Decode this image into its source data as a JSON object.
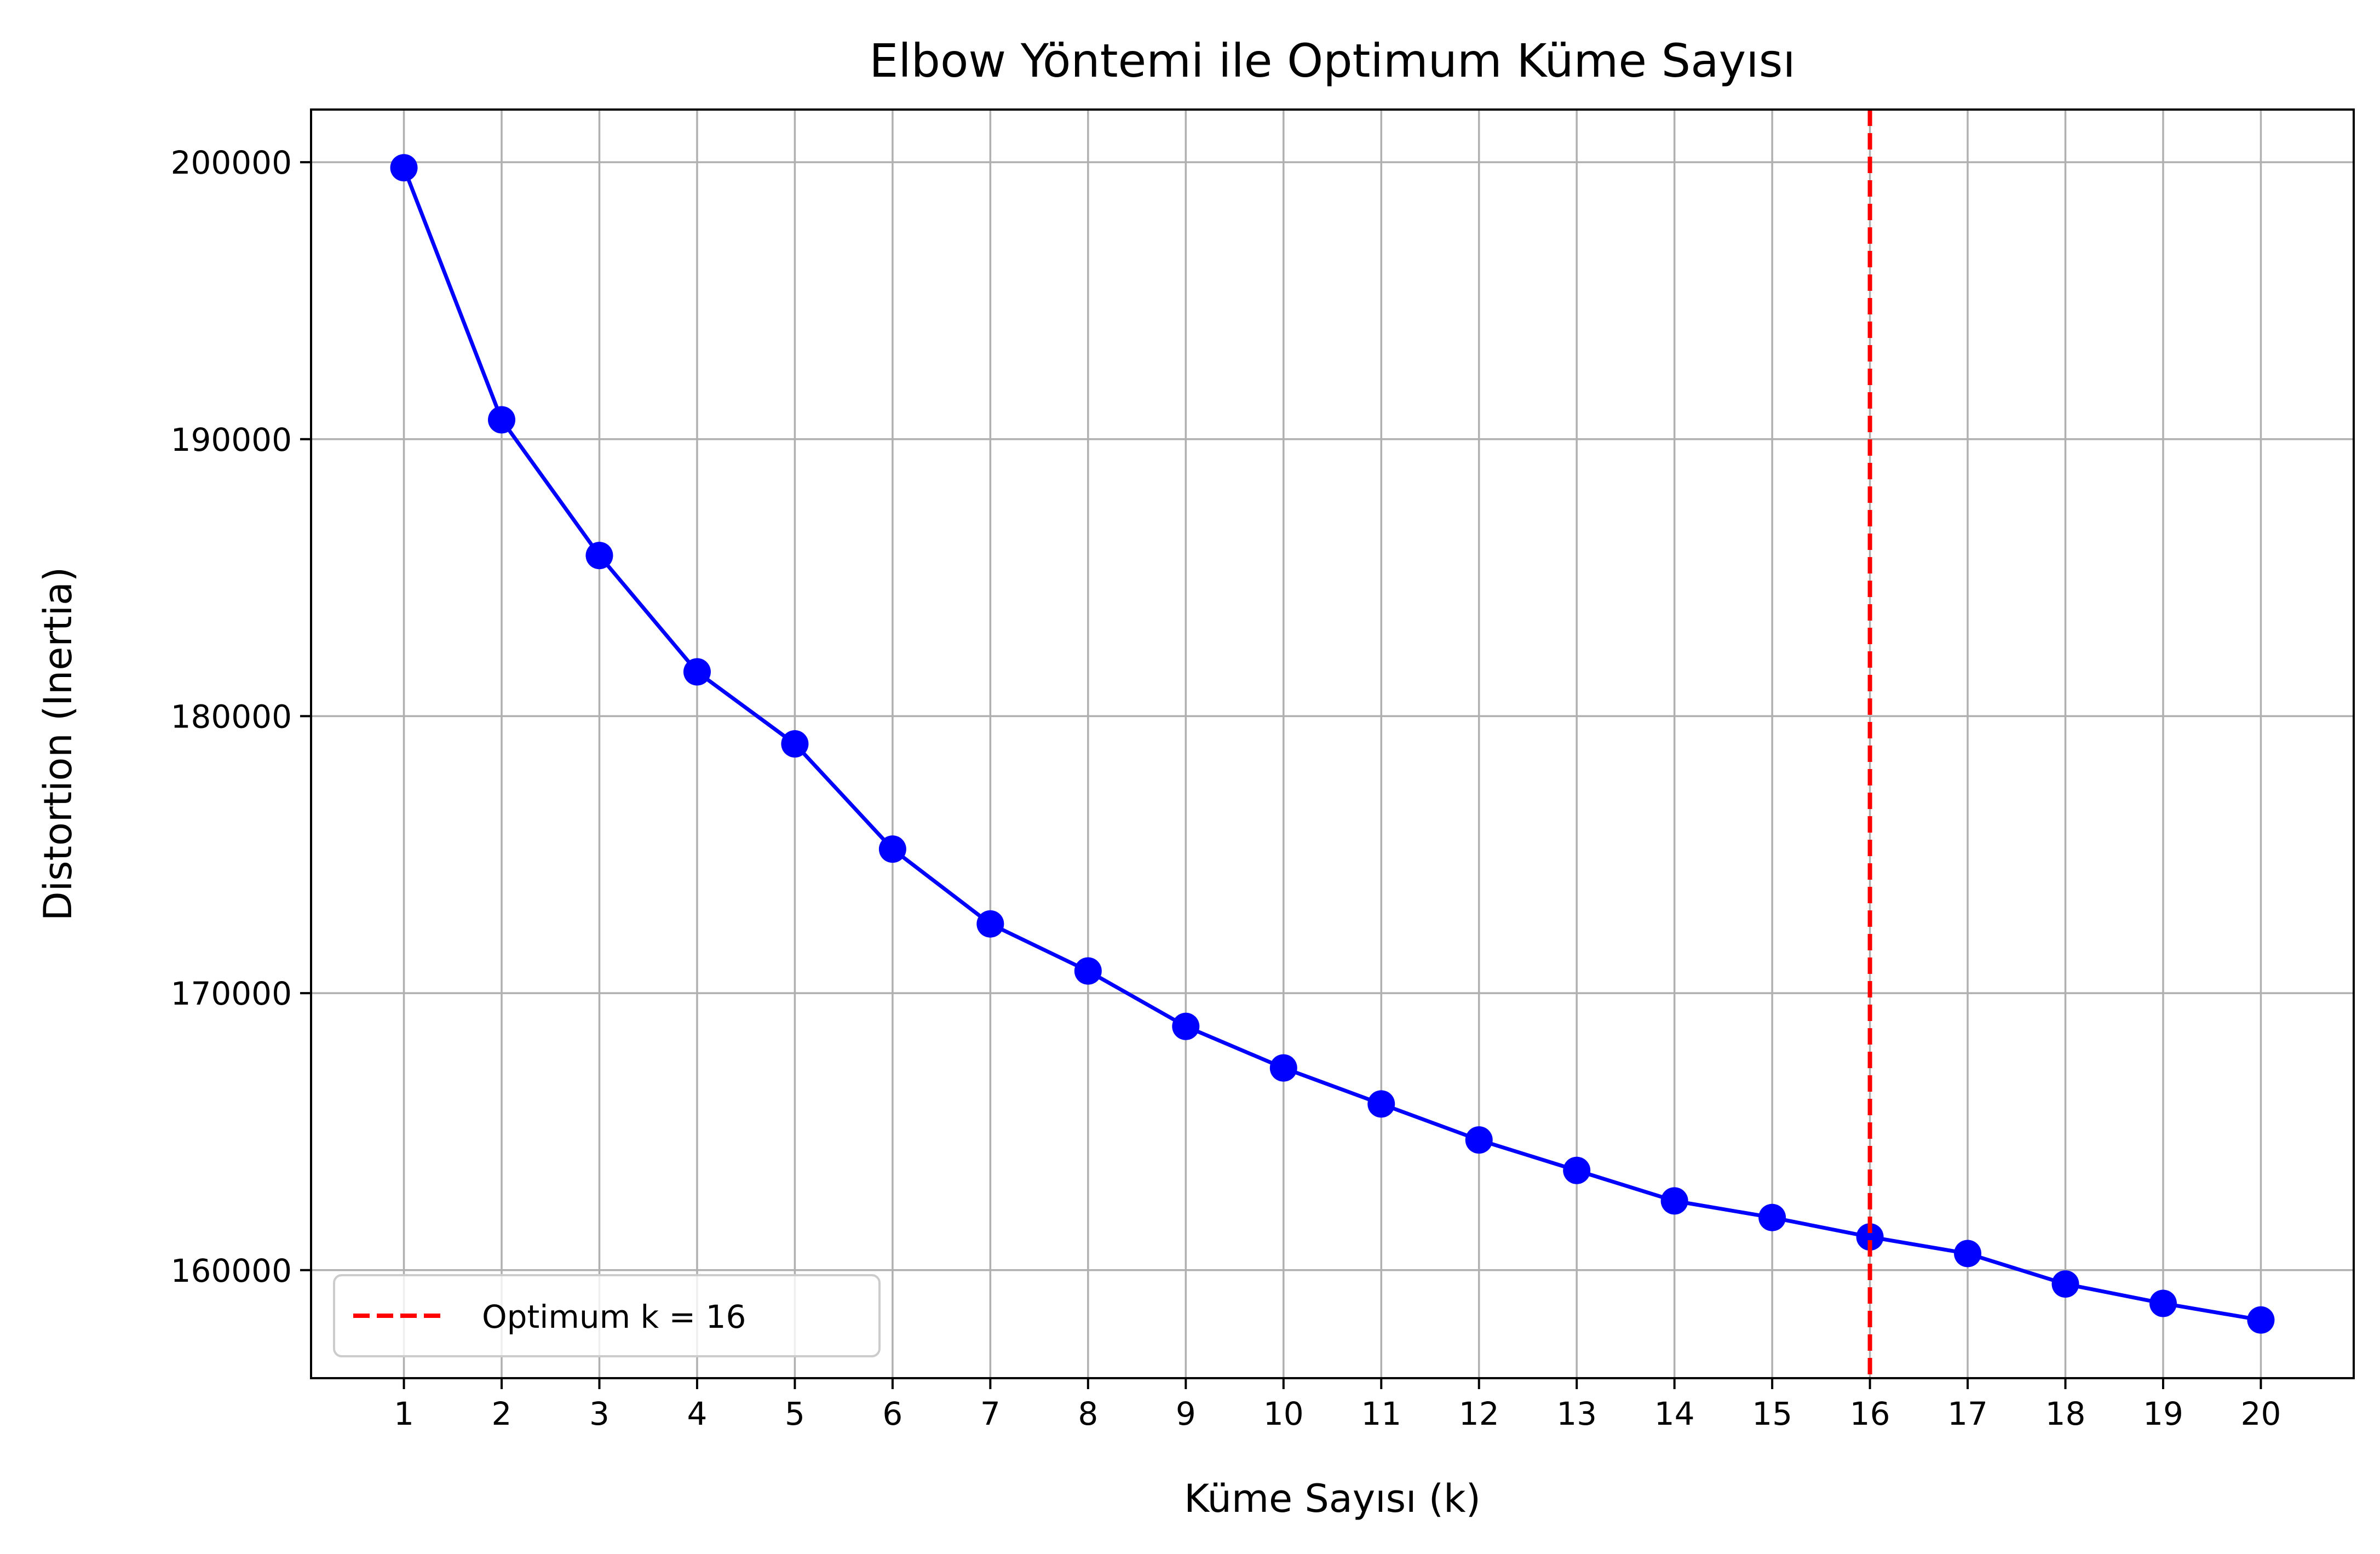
{
  "chart_data": {
    "type": "line",
    "title": "Elbow Yöntemi ile Optimum Küme Sayısı",
    "xlabel": "Küme Sayısı (k)",
    "ylabel": "Distortion (Inertia)",
    "x": [
      1,
      2,
      3,
      4,
      5,
      6,
      7,
      8,
      9,
      10,
      11,
      12,
      13,
      14,
      15,
      16,
      17,
      18,
      19,
      20
    ],
    "x_ticks": [
      "1",
      "2",
      "3",
      "4",
      "5",
      "6",
      "7",
      "8",
      "9",
      "10",
      "11",
      "12",
      "13",
      "14",
      "15",
      "16",
      "17",
      "18",
      "19",
      "20"
    ],
    "y_ticks": [
      "160000",
      "170000",
      "180000",
      "190000",
      "200000"
    ],
    "y_tick_values": [
      160000,
      170000,
      180000,
      190000,
      200000
    ],
    "xlim": [
      0.05,
      20.95
    ],
    "ylim": [
      156100,
      201900
    ],
    "grid": true,
    "series": [
      {
        "values": [
          199800,
          190700,
          185800,
          181600,
          179000,
          175200,
          172500,
          170800,
          168800,
          167300,
          166000,
          164700,
          163600,
          162500,
          161900,
          161200,
          160600,
          159500,
          158800,
          158200
        ],
        "color": "#0000ff",
        "marker": "circle"
      }
    ],
    "reference_line": {
      "orientation": "vertical",
      "x": 16,
      "color": "#ff0000",
      "style": "dashed",
      "label": "Optimum k = 16"
    },
    "legend": {
      "placement": "lower-left",
      "entries": [
        "Optimum k = 16"
      ]
    }
  }
}
